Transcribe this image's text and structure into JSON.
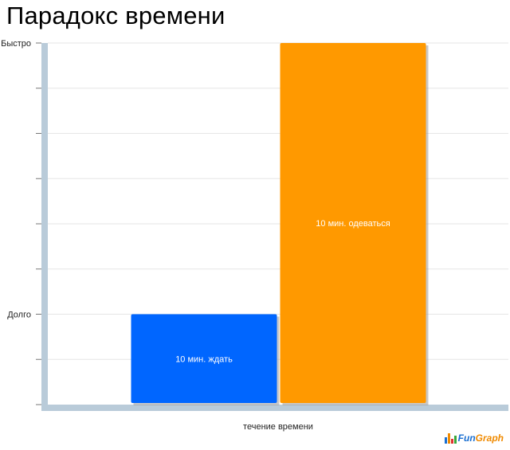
{
  "title": "Парадокс времени",
  "chart_data": {
    "type": "bar",
    "categories": [
      "10 мин. ждать",
      "10 мин. одеваться"
    ],
    "values": [
      2,
      8
    ],
    "bar_labels": [
      "10 мин. ждать",
      "10 мин. одеваться"
    ],
    "colors": [
      "#0066ff",
      "#ff9900"
    ],
    "ylim": [
      0,
      8
    ],
    "yticks": [
      {
        "value": 2,
        "label": "Долго"
      },
      {
        "value": 8,
        "label": "Быстро"
      }
    ],
    "xlabel": "течение времени",
    "ylabel": "",
    "grid": true
  },
  "logo": {
    "text": "Fun",
    "accent": "Graph",
    "bar_colors": [
      "#1a6fd1",
      "#f08a00",
      "#e03030",
      "#3aa83a"
    ]
  }
}
